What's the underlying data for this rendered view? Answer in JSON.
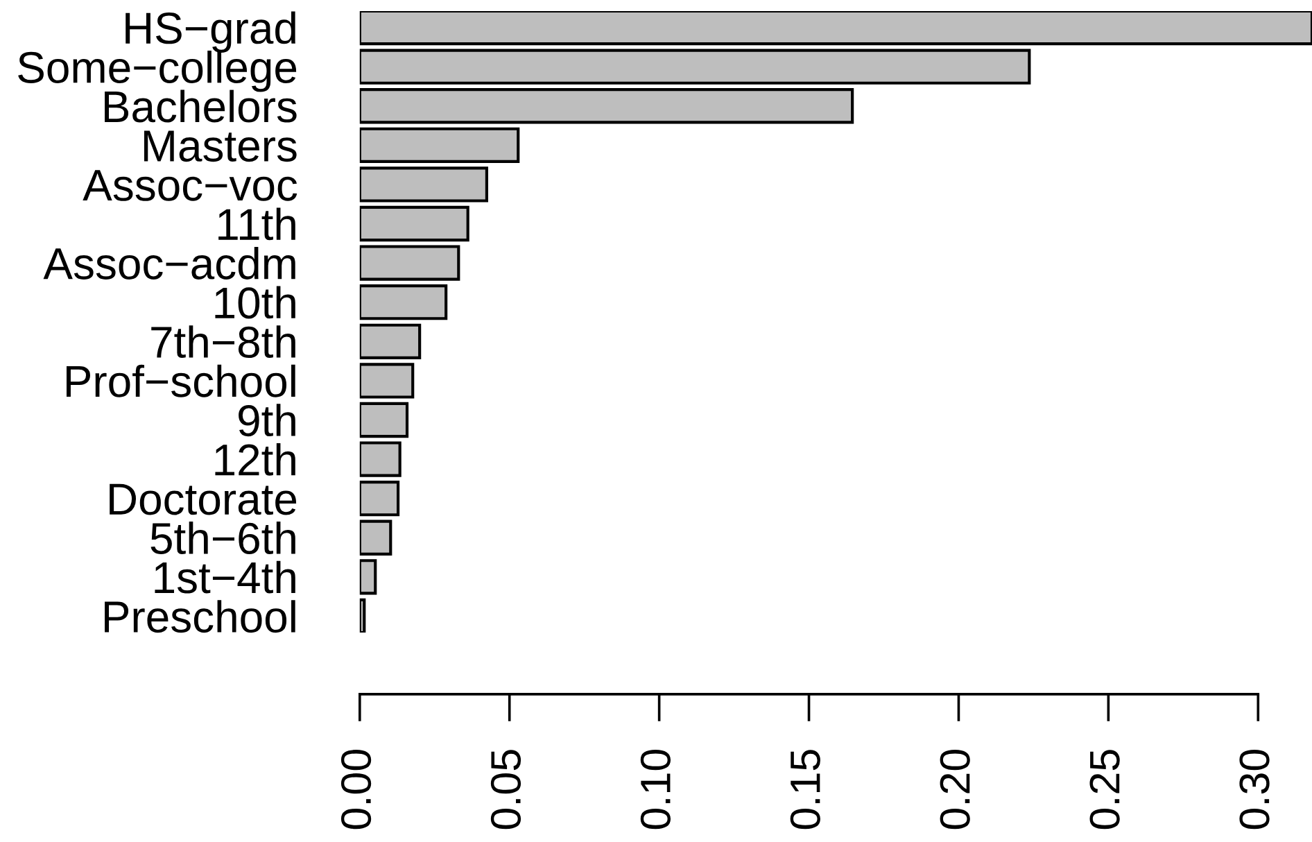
{
  "chart_data": {
    "type": "bar",
    "orientation": "horizontal",
    "categories": [
      "HS−grad",
      "Some−college",
      "Bachelors",
      "Masters",
      "Assoc−voc",
      "11th",
      "Assoc−acdm",
      "10th",
      "7th−8th",
      "Prof−school",
      "9th",
      "12th",
      "Doctorate",
      "5th−6th",
      "1st−4th",
      "Preschool"
    ],
    "values": [
      0.318,
      0.2236,
      0.1645,
      0.0529,
      0.0424,
      0.0361,
      0.033,
      0.0288,
      0.02,
      0.0177,
      0.0158,
      0.0134,
      0.0128,
      0.0103,
      0.0052,
      0.0015
    ],
    "color": "#bebebe",
    "xlim": [
      0,
      0.318
    ],
    "xticks": [
      {
        "value": 0,
        "label": "0.00"
      },
      {
        "value": 0.05,
        "label": "0.05"
      },
      {
        "value": 0.1,
        "label": "0.10"
      },
      {
        "value": 0.15,
        "label": "0.15"
      },
      {
        "value": 0.2,
        "label": "0.20"
      },
      {
        "value": 0.25,
        "label": "0.25"
      },
      {
        "value": 0.3,
        "label": "0.30"
      }
    ],
    "grid": false
  }
}
